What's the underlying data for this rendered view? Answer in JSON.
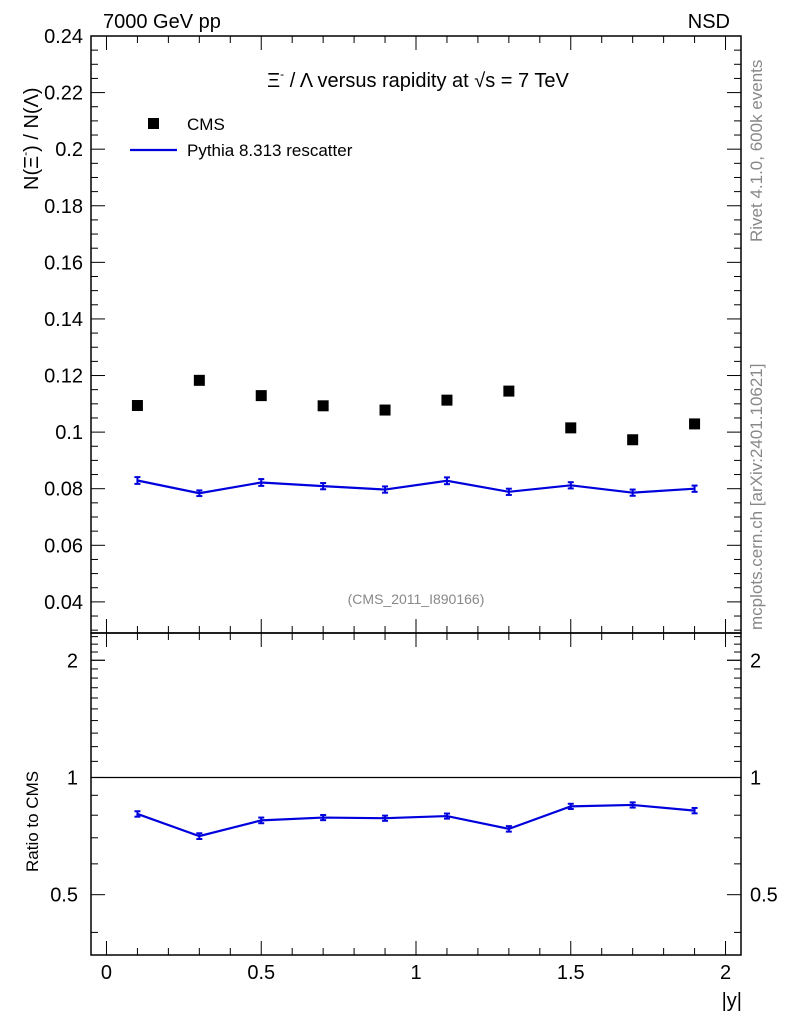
{
  "header": {
    "left": "7000 GeV pp",
    "right": "NSD"
  },
  "side_labels": {
    "rivet": "Rivet 4.1.0,  600k events",
    "mcplots": "mcplots.cern.ch [arXiv:2401.10621]"
  },
  "colors": {
    "mc": "#0000dd",
    "data": "#000000",
    "watermark": "#888888"
  },
  "chart_data": [
    {
      "type": "scatter",
      "title": "Ξ⁻ / Λ versus rapidity at √s = 7 TeV",
      "title_parts": {
        "xi": "Ξ",
        "xi_sup": "-",
        "rest": " / Λ versus rapidity at ",
        "sqrt": "√s",
        "energy": " = 7 TeV"
      },
      "ylabel": "N(Ξ⁻)  / N(Λ)",
      "ylabel_parts": {
        "a": "N(Ξ",
        "sup": "-",
        "b": ")  / N(Λ)"
      },
      "xlim": [
        -0.05,
        2.05
      ],
      "ylim": [
        0.029,
        0.24
      ],
      "yticks": [
        0.04,
        0.06,
        0.08,
        0.1,
        0.12,
        0.14,
        0.16,
        0.18,
        0.2,
        0.22,
        0.24
      ],
      "ytick_labels": [
        "0.04",
        "0.06",
        "0.08",
        "0.1",
        "0.12",
        "0.14",
        "0.16",
        "0.18",
        "0.2",
        "0.22",
        "0.24"
      ],
      "watermark": "(CMS_2011_I890166)",
      "x": [
        0.1,
        0.3,
        0.5,
        0.7,
        0.9,
        1.1,
        1.3,
        1.5,
        1.7,
        1.9
      ],
      "series": [
        {
          "name": "CMS",
          "style": "markers",
          "values": [
            0.1094,
            0.1183,
            0.1129,
            0.1093,
            0.1078,
            0.1113,
            0.1145,
            0.1015,
            0.0973,
            0.1029
          ]
        },
        {
          "name": "Pythia 8.313 rescatter",
          "style": "line",
          "values": [
            0.0829,
            0.0784,
            0.0822,
            0.0809,
            0.0797,
            0.0828,
            0.0789,
            0.0812,
            0.0786,
            0.08
          ],
          "errors": [
            0.0012,
            0.001,
            0.0012,
            0.0011,
            0.0011,
            0.0012,
            0.0011,
            0.0011,
            0.0011,
            0.0011
          ]
        }
      ],
      "legend": {
        "position": "top-left",
        "entries": [
          "CMS",
          "Pythia 8.313 rescatter"
        ]
      }
    },
    {
      "type": "line",
      "ylabel": "Ratio to CMS",
      "xlabel": "|y|",
      "xlim": [
        -0.05,
        2.05
      ],
      "ylim": [
        0.35,
        2.35
      ],
      "log_scale_y": true,
      "reference_line": 1,
      "yticks": [
        0.5,
        1,
        2
      ],
      "ytick_labels": [
        "0.5",
        "1",
        "2"
      ],
      "xticks": [
        0,
        0.5,
        1,
        1.5,
        2
      ],
      "xtick_labels": [
        "0",
        "0.5",
        "1",
        "1.5",
        "2"
      ],
      "x": [
        0.1,
        0.3,
        0.5,
        0.7,
        0.9,
        1.1,
        1.3,
        1.5,
        1.7,
        1.9
      ],
      "series": [
        {
          "name": "Pythia 8.313 rescatter / CMS",
          "values": [
            0.806,
            0.707,
            0.776,
            0.789,
            0.786,
            0.796,
            0.738,
            0.843,
            0.85,
            0.822
          ],
          "errors": [
            0.013,
            0.012,
            0.013,
            0.012,
            0.012,
            0.012,
            0.012,
            0.013,
            0.013,
            0.013
          ]
        }
      ]
    }
  ]
}
